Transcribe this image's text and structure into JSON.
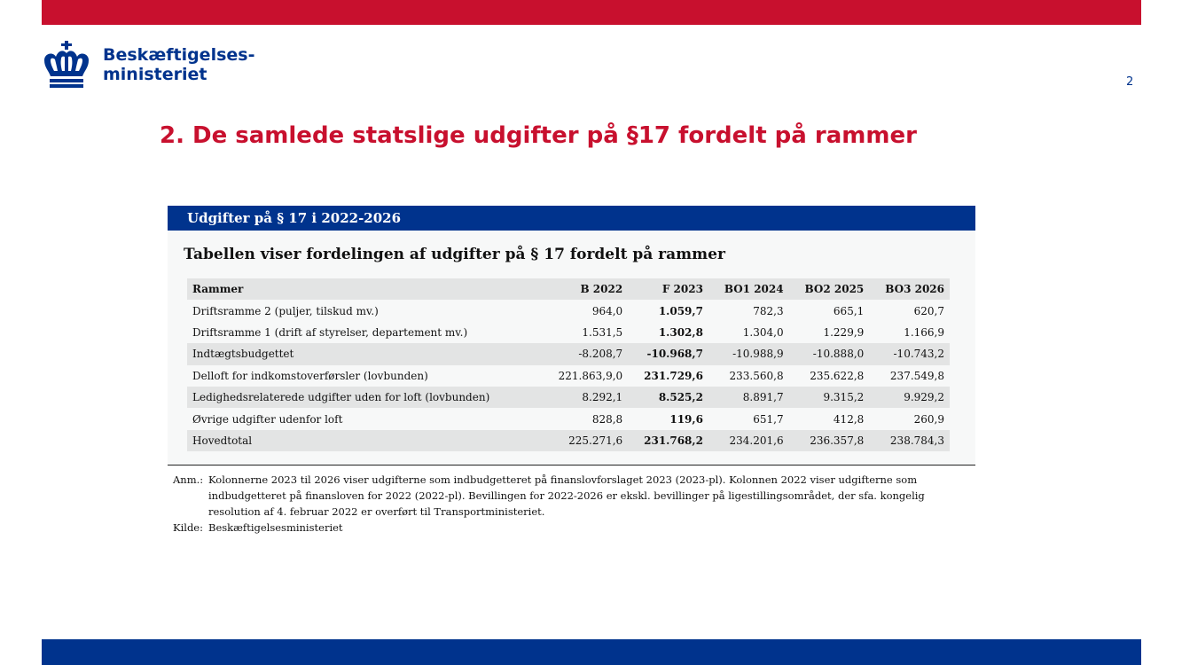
{
  "header": {
    "logo_line1": "Beskæftigelses-",
    "logo_line2": "ministeriet",
    "page_number": "2"
  },
  "slide_title": "2. De samlede statslige udgifter på §17 fordelt på rammer",
  "panel": {
    "header": "Udgifter på § 17 i 2022-2026",
    "subtitle": "Tabellen viser fordelingen af udgifter på § 17 fordelt på rammer"
  },
  "table": {
    "columns": [
      "Rammer",
      "B 2022",
      "F 2023",
      "BO1 2024",
      "BO2 2025",
      "BO3 2026"
    ],
    "rows": [
      [
        "Driftsramme 2 (puljer, tilskud mv.)",
        "964,0",
        "1.059,7",
        "782,3",
        "665,1",
        "620,7"
      ],
      [
        "Driftsramme 1 (drift af styrelser, departement mv.)",
        "1.531,5",
        "1.302,8",
        "1.304,0",
        "1.229,9",
        "1.166,9"
      ],
      [
        "Indtægtsbudgettet",
        "-8.208,7",
        "-10.968,7",
        "-10.988,9",
        "-10.888,0",
        "-10.743,2"
      ],
      [
        "Delloft for indkomstoverførsler (lovbunden)",
        "221.863,9,0",
        "231.729,6",
        "233.560,8",
        "235.622,8",
        "237.549,8"
      ],
      [
        "Ledighedsrelaterede udgifter uden for loft (lovbunden)",
        "8.292,1",
        "8.525,2",
        "8.891,7",
        "9.315,2",
        "9.929,2"
      ],
      [
        "Øvrige udgifter udenfor loft",
        "828,8",
        "119,6",
        "651,7",
        "412,8",
        "260,9"
      ],
      [
        "Hovedtotal",
        "225.271,6",
        "231.768,2",
        "234.201,6",
        "236.357,8",
        "238.784,3"
      ]
    ]
  },
  "notes": {
    "anm_label": "Anm.:",
    "anm_text": "Kolonnerne 2023 til 2026 viser udgifterne som indbudgetteret på finanslovforslaget 2023 (2023-pl). Kolonnen 2022 viser udgifterne som indbudgetteret på finansloven for 2022 (2022-pl). Bevillingen for 2022-2026 er ekskl. bevillinger på ligestillingsområdet, der sfa. kongelig resolution af 4. februar 2022 er overført til Transportministeriet.",
    "kilde_label": "Kilde:",
    "kilde_text": "Beskæftigelsesministeriet"
  },
  "colors": {
    "brand_red": "#c8102e",
    "brand_blue": "#00338d",
    "row_shade": "#e3e4e4"
  }
}
